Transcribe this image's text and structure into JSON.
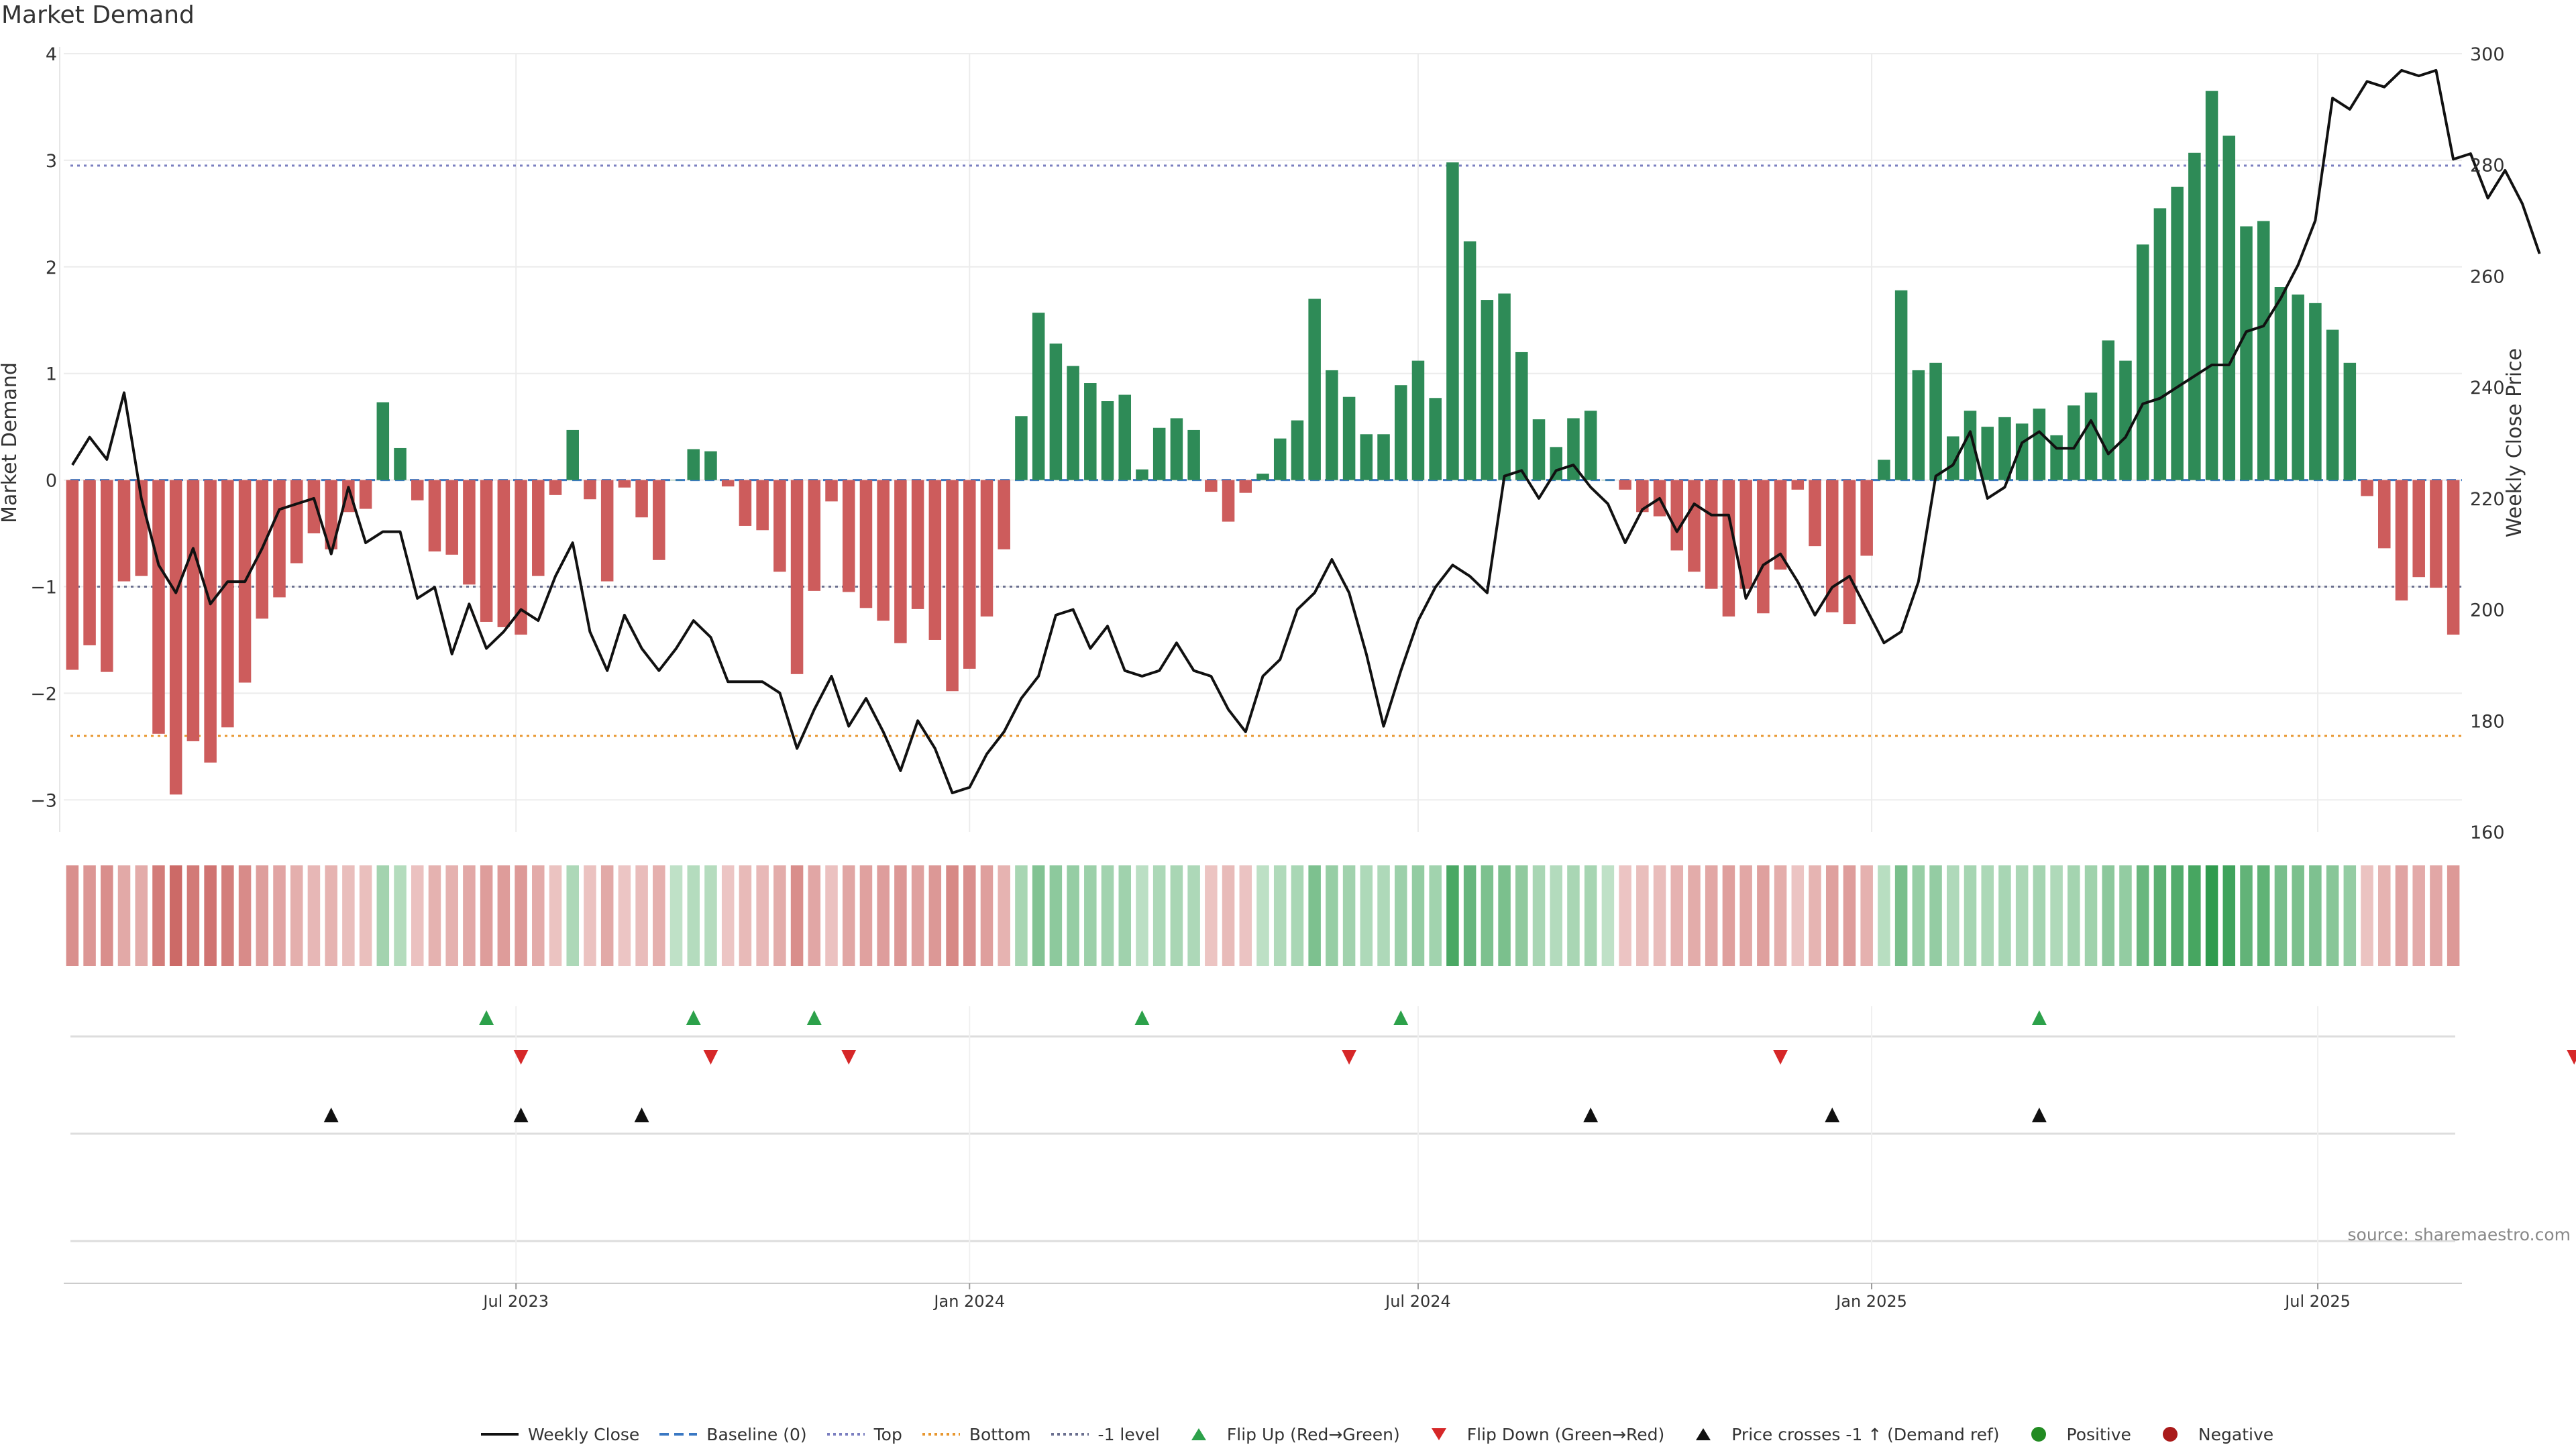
{
  "chart_data": {
    "type": "bar",
    "title": "Market Demand",
    "ylabel_left": "Market Demand",
    "ylabel_right": "Weekly Close Price",
    "ylim_left": [
      -3.3,
      4
    ],
    "ylim_right": [
      160,
      300
    ],
    "yticks_left": [
      "4",
      "3",
      "2",
      "1",
      "0",
      "−1",
      "−2",
      "−3"
    ],
    "yticks_right": [
      "300",
      "280",
      "260",
      "240",
      "220",
      "200",
      "180",
      "160"
    ],
    "x_start": "2023-01-02",
    "week_days": 7,
    "xticks": [
      {
        "date": "2023-07-01",
        "label": "Jul 2023"
      },
      {
        "date": "2024-01-01",
        "label": "Jan 2024"
      },
      {
        "date": "2024-07-01",
        "label": "Jul 2024"
      },
      {
        "date": "2025-01-01",
        "label": "Jan 2025"
      },
      {
        "date": "2025-07-01",
        "label": "Jul 2025"
      }
    ],
    "top_level": 2.95,
    "bottom_level": -2.4,
    "minus_one_level": -1,
    "baseline": 0,
    "demand": [
      -1.78,
      -1.55,
      -1.8,
      -0.95,
      -0.9,
      -2.38,
      -2.95,
      -2.45,
      -2.65,
      -2.32,
      -1.9,
      -1.3,
      -1.1,
      -0.78,
      -0.5,
      -0.65,
      -0.3,
      -0.27,
      0.73,
      0.3,
      -0.19,
      -0.67,
      -0.7,
      -0.98,
      -1.33,
      -1.38,
      -1.45,
      -0.9,
      -0.14,
      0.47,
      -0.18,
      -0.95,
      -0.07,
      -0.35,
      -0.75,
      0.0,
      0.29,
      0.27,
      -0.06,
      -0.43,
      -0.47,
      -0.86,
      -1.82,
      -1.04,
      -0.2,
      -1.05,
      -1.2,
      -1.32,
      -1.53,
      -1.21,
      -1.5,
      -1.98,
      -1.77,
      -1.28,
      -0.65,
      0.6,
      1.57,
      1.28,
      1.07,
      0.91,
      0.74,
      0.8,
      0.1,
      0.49,
      0.58,
      0.47,
      -0.11,
      -0.39,
      -0.12,
      0.06,
      0.39,
      0.56,
      1.7,
      1.03,
      0.78,
      0.43,
      0.43,
      0.89,
      1.12,
      0.77,
      2.98,
      2.24,
      1.69,
      1.75,
      1.2,
      0.57,
      0.31,
      0.58,
      0.65,
      0.0,
      -0.09,
      -0.3,
      -0.34,
      -0.66,
      -0.86,
      -1.02,
      -1.28,
      -1.02,
      -1.25,
      -0.84,
      -0.09,
      -0.62,
      -1.24,
      -1.35,
      -0.71,
      0.19,
      1.78,
      1.03,
      1.1,
      0.41,
      0.65,
      0.5,
      0.59,
      0.53,
      0.67,
      0.42,
      0.7,
      0.82,
      1.31,
      1.12,
      2.21,
      2.55,
      2.75,
      3.07,
      3.65,
      3.23,
      2.38,
      2.43,
      1.81,
      1.74,
      1.66,
      1.41,
      1.1,
      -0.15,
      -0.64,
      -1.13,
      -0.91,
      -1.01,
      -1.45
    ],
    "weekly_close": [
      226,
      231,
      227,
      239,
      220,
      208,
      203,
      211,
      201,
      205,
      205,
      211,
      218,
      219,
      220,
      210,
      222,
      212,
      214,
      214,
      202,
      204,
      192,
      201,
      193,
      196,
      200,
      198,
      206,
      212,
      196,
      189,
      199,
      193,
      189,
      193,
      198,
      195,
      187,
      187,
      187,
      185,
      175,
      182,
      188,
      179,
      184,
      178,
      171,
      180,
      175,
      167,
      168,
      174,
      178,
      184,
      188,
      199,
      200,
      193,
      197,
      189,
      188,
      189,
      194,
      189,
      188,
      182,
      178,
      188,
      191,
      200,
      203,
      209,
      203,
      192,
      179,
      189,
      198,
      204,
      208,
      206,
      203,
      224,
      225,
      220,
      225,
      226,
      222,
      219,
      212,
      218,
      220,
      214,
      219,
      217,
      217,
      202,
      208,
      210,
      205,
      199,
      204,
      206,
      200,
      194,
      196,
      205,
      224,
      226,
      232,
      220,
      222,
      230,
      232,
      229,
      229,
      234,
      228,
      231,
      237,
      238,
      240,
      242,
      244,
      244,
      250,
      251,
      256,
      262,
      270,
      292,
      290,
      295,
      294,
      297,
      296,
      297,
      281,
      282,
      274,
      279,
      273,
      264
    ],
    "flip_up": [
      "2023-06-19",
      "2023-09-11",
      "2023-10-30",
      "2024-03-11",
      "2024-06-24",
      "2025-03-10"
    ],
    "flip_down": [
      "2023-07-03",
      "2023-09-18",
      "2023-11-13",
      "2024-06-03",
      "2024-11-25",
      "2025-10-13"
    ],
    "price_cross_up": [
      "2023-04-17",
      "2023-07-03",
      "2023-08-21",
      "2024-09-09",
      "2024-12-16",
      "2025-03-10"
    ],
    "legend": [
      {
        "label": "Weekly Close",
        "kind": "solid",
        "color": "#111111"
      },
      {
        "label": "Baseline (0)",
        "kind": "dash",
        "color": "#3a78c3"
      },
      {
        "label": "Top",
        "kind": "dot",
        "color": "#7b7fc0"
      },
      {
        "label": "Bottom",
        "kind": "dot",
        "color": "#e8972f"
      },
      {
        "label": "-1 level",
        "kind": "dot",
        "color": "#6a6f8f"
      },
      {
        "label": "Flip Up (Red→Green)",
        "kind": "up",
        "color": "#2ca14a"
      },
      {
        "label": "Flip Down (Green→Red)",
        "kind": "down",
        "color": "#d62728"
      },
      {
        "label": "Price crosses -1 ↑ (Demand ref)",
        "kind": "up",
        "color": "#111111"
      },
      {
        "label": "Positive",
        "kind": "circle",
        "color": "#228b22"
      },
      {
        "label": "Negative",
        "kind": "circle",
        "color": "#aa1a1a"
      }
    ],
    "source": "source: sharemaestro.com",
    "colors": {
      "positive_bar": "#2e8b57",
      "negative_bar": "#cd5c5c",
      "price_line": "#111111"
    }
  }
}
